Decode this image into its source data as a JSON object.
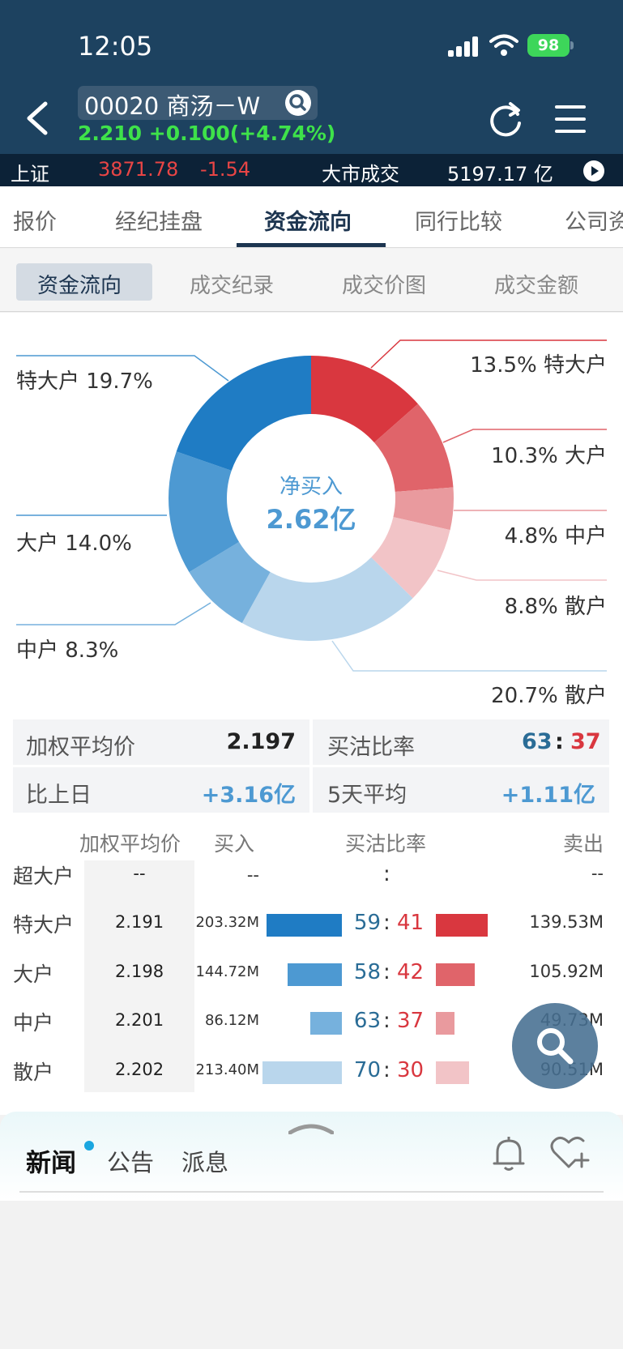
{
  "status": {
    "time": "12:05",
    "battery": "98"
  },
  "header": {
    "stock": "00020 商汤－W",
    "price_line": "2.210 +0.100(+4.74%)"
  },
  "ticker": {
    "index": "上证",
    "value": "3871.78",
    "change": "-1.54",
    "market_label": "大市成交",
    "market_value": "5197.17 亿"
  },
  "tabs": [
    "报价",
    "经纪挂盘",
    "资金流向",
    "同行比较",
    "公司资"
  ],
  "subtabs": [
    "资金流向",
    "成交纪录",
    "成交价图",
    "成交金额"
  ],
  "donut": {
    "center_label": "净买入",
    "center_value": "2.62亿",
    "labels": {
      "l1": "特大户 19.7%",
      "l2": "大户 14.0%",
      "l3": "中户 8.3%",
      "r1": "13.5% 特大户",
      "r2": "10.3% 大户",
      "r3": "4.8% 中户",
      "r4": "8.8% 散户",
      "r5": "20.7% 散户"
    }
  },
  "chart_data": {
    "type": "pie",
    "categories": [
      "特大户(卖)",
      "大户(卖)",
      "中户(卖)",
      "散户(卖)",
      "散户(买)",
      "中户(买)",
      "大户(买)",
      "特大户(买)"
    ],
    "values": [
      13.5,
      10.3,
      4.8,
      8.8,
      20.7,
      8.3,
      14.0,
      19.7
    ],
    "colors": [
      "#d9373f",
      "#e0646a",
      "#e99a9e",
      "#f2c4c7",
      "#b9d6ec",
      "#76b1dd",
      "#4d99d2",
      "#1f7cc4"
    ]
  },
  "stats": {
    "avg_label": "加权平均价",
    "avg_value": "2.197",
    "ratio_label": "买沽比率",
    "ratio_buy": "63",
    "ratio_sep": ":",
    "ratio_sell": "37",
    "prev_label": "比上日",
    "prev_value": "+3.16亿",
    "five_label": "5天平均",
    "five_value": "+1.11亿"
  },
  "table": {
    "headers": [
      "加权平均价",
      "买入",
      "买沽比率",
      "卖出"
    ],
    "rows": [
      {
        "label": "超大户",
        "avg": "--",
        "buy": "--",
        "rb": "",
        "sep": ":",
        "rs": "",
        "sell": "--"
      },
      {
        "label": "特大户",
        "avg": "2.191",
        "buy": "203.32M",
        "rb": "59",
        "sep": ":",
        "rs": "41",
        "sell": "139.53M",
        "buy_frac": 0.95,
        "sell_frac": 0.65
      },
      {
        "label": "大户",
        "avg": "2.198",
        "buy": "144.72M",
        "rb": "58",
        "sep": ":",
        "rs": "42",
        "sell": "105.92M",
        "buy_frac": 0.68,
        "sell_frac": 0.49
      },
      {
        "label": "中户",
        "avg": "2.201",
        "buy": "86.12M",
        "rb": "63",
        "sep": ":",
        "rs": "37",
        "sell": "49.73M",
        "buy_frac": 0.4,
        "sell_frac": 0.23
      },
      {
        "label": "散户",
        "avg": "2.202",
        "buy": "213.40M",
        "rb": "70",
        "sep": ":",
        "rs": "30",
        "sell": "90.51M",
        "buy_frac": 1.0,
        "sell_frac": 0.42
      }
    ]
  },
  "news": {
    "tabs": [
      "新闻",
      "公告",
      "派息"
    ]
  }
}
